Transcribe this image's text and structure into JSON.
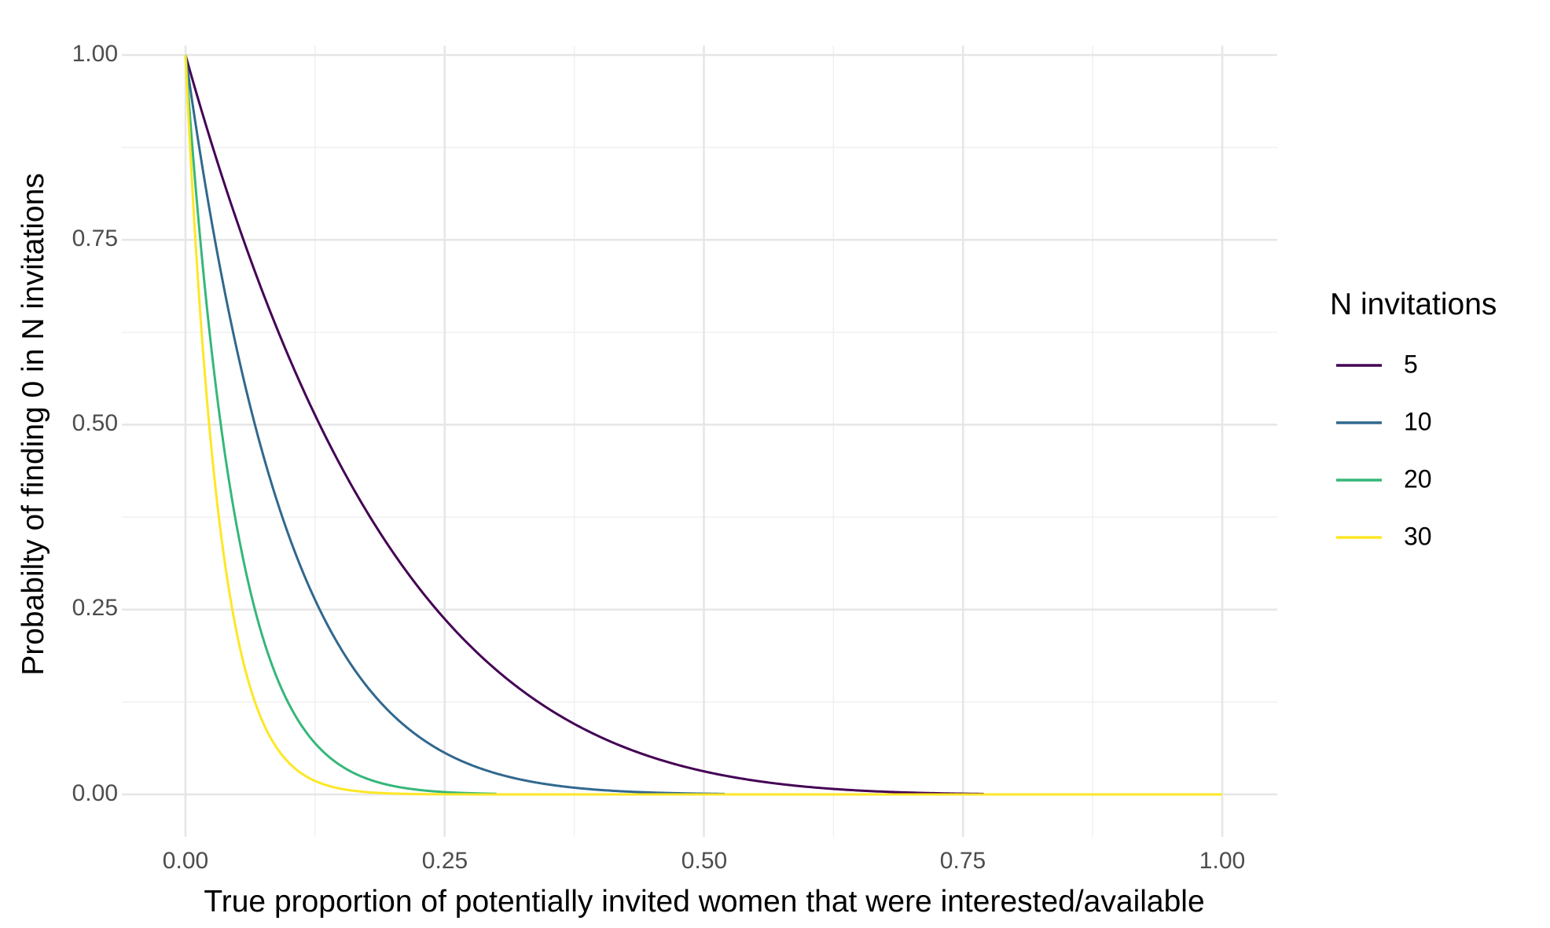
{
  "chart_data": {
    "type": "line",
    "title": "",
    "xlabel": "True proportion of potentially invited women that were interested/available",
    "ylabel": "Probabilty of finding 0 in N invitations",
    "xlim": [
      0,
      1
    ],
    "ylim": [
      0,
      1
    ],
    "x_ticks": [
      0,
      0.25,
      0.5,
      0.75,
      1
    ],
    "x_tick_labels": [
      "0.00",
      "0.25",
      "0.50",
      "0.75",
      "1.00"
    ],
    "y_ticks": [
      0,
      0.25,
      0.5,
      0.75,
      1
    ],
    "y_tick_labels": [
      "0.00",
      "0.25",
      "0.50",
      "0.75",
      "1.00"
    ],
    "grid": true,
    "legend": {
      "title": "N invitations",
      "position": "right"
    },
    "series": [
      {
        "name": "5",
        "n": 5,
        "color": "#440154",
        "x_end": 0.77
      },
      {
        "name": "10",
        "n": 10,
        "color": "#31688E",
        "x_end": 0.52
      },
      {
        "name": "20",
        "n": 20,
        "color": "#35B779",
        "x_end": 0.3
      },
      {
        "name": "30",
        "n": 30,
        "color": "#FDE725",
        "x_end": 1.0
      }
    ],
    "x": [
      0,
      0.01,
      0.02,
      0.03,
      0.04,
      0.05,
      0.06,
      0.07,
      0.08,
      0.09,
      0.1,
      0.12,
      0.14,
      0.16,
      0.18,
      0.2,
      0.25,
      0.3,
      0.35,
      0.4,
      0.5,
      0.6,
      0.7,
      0.77,
      0.8,
      0.9,
      1.0
    ],
    "function": "y = (1 - x)^n"
  }
}
